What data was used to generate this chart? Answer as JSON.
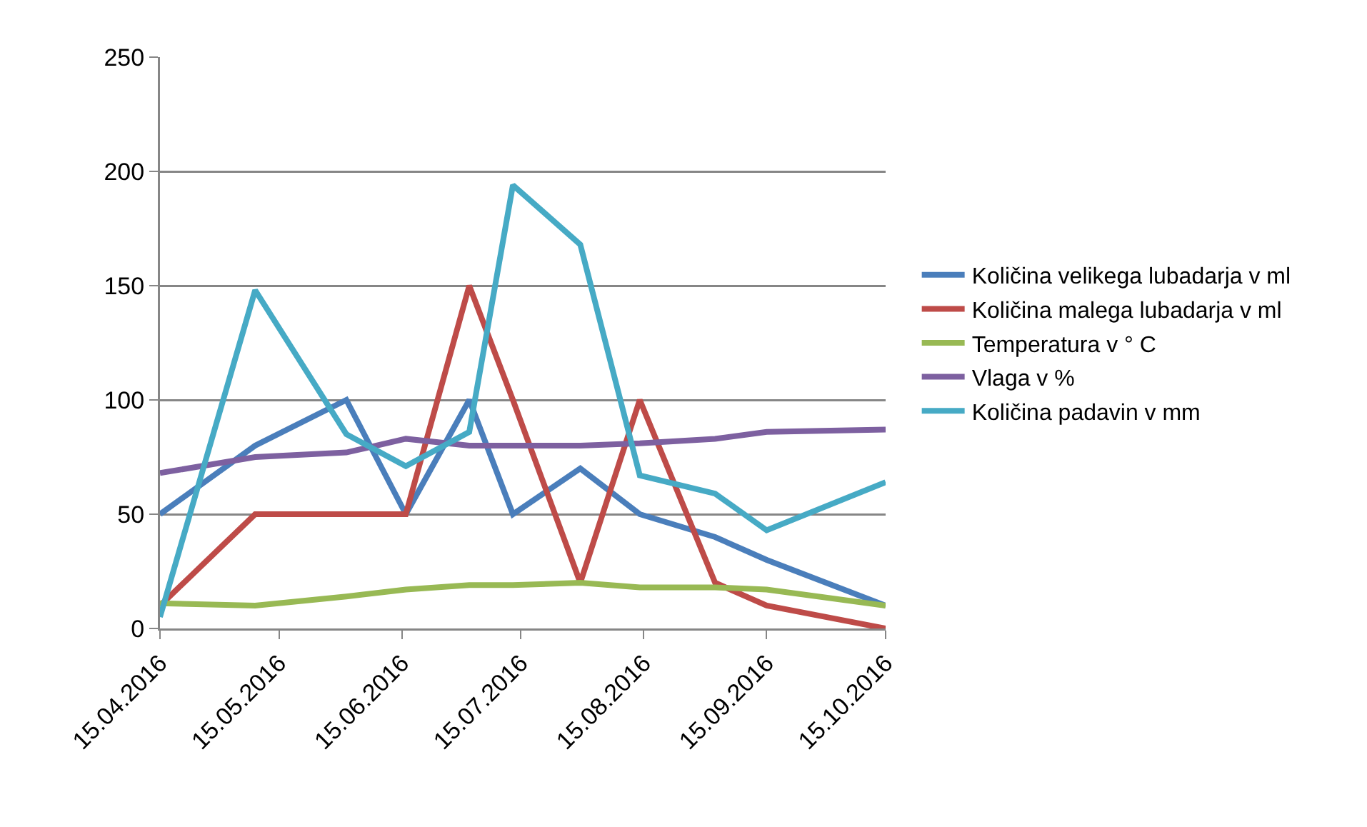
{
  "chart_data": {
    "type": "line",
    "x": [
      "2016-04-15",
      "2016-05-09",
      "2016-06-01",
      "2016-06-16",
      "2016-07-02",
      "2016-07-13",
      "2016-07-30",
      "2016-08-14",
      "2016-09-02",
      "2016-09-15",
      "2016-10-15"
    ],
    "series": [
      {
        "name": "Količina velikega lubadarja v ml",
        "color": "#4a7ebb",
        "values": [
          50,
          80,
          100,
          50,
          100,
          50,
          70,
          50,
          40,
          30,
          10
        ]
      },
      {
        "name": "Količina malega lubadarja v ml",
        "color": "#be4b48",
        "values": [
          10,
          50,
          50,
          50,
          150,
          100,
          20,
          100,
          20,
          10,
          0
        ]
      },
      {
        "name": "Temperatura v ° C",
        "color": "#98b954",
        "values": [
          11,
          10,
          14,
          17,
          19,
          19,
          20,
          18,
          18,
          17,
          10
        ]
      },
      {
        "name": "Vlaga v %",
        "color": "#7d60a0",
        "values": [
          68,
          75,
          77,
          83,
          80,
          80,
          80,
          81,
          83,
          86,
          87
        ]
      },
      {
        "name": "Količina padavin v mm",
        "color": "#46aac5",
        "values": [
          5,
          148,
          85,
          71,
          86,
          194,
          168,
          67,
          59,
          43,
          64
        ]
      }
    ],
    "xlim": [
      "2016-04-15",
      "2016-10-15"
    ],
    "xticks": [
      {
        "value": "2016-04-15",
        "label": "15.04.2016"
      },
      {
        "value": "2016-05-15",
        "label": "15.05.2016"
      },
      {
        "value": "2016-06-15",
        "label": "15.06.2016"
      },
      {
        "value": "2016-07-15",
        "label": "15.07.2016"
      },
      {
        "value": "2016-08-15",
        "label": "15.08.2016"
      },
      {
        "value": "2016-09-15",
        "label": "15.09.2016"
      },
      {
        "value": "2016-10-15",
        "label": "15.10.2016"
      }
    ],
    "ylim": [
      0,
      250
    ],
    "yticks": [
      0,
      50,
      100,
      150,
      200,
      250
    ],
    "grid": "y",
    "legend": "right",
    "marker": "none",
    "line_style": "solid"
  }
}
